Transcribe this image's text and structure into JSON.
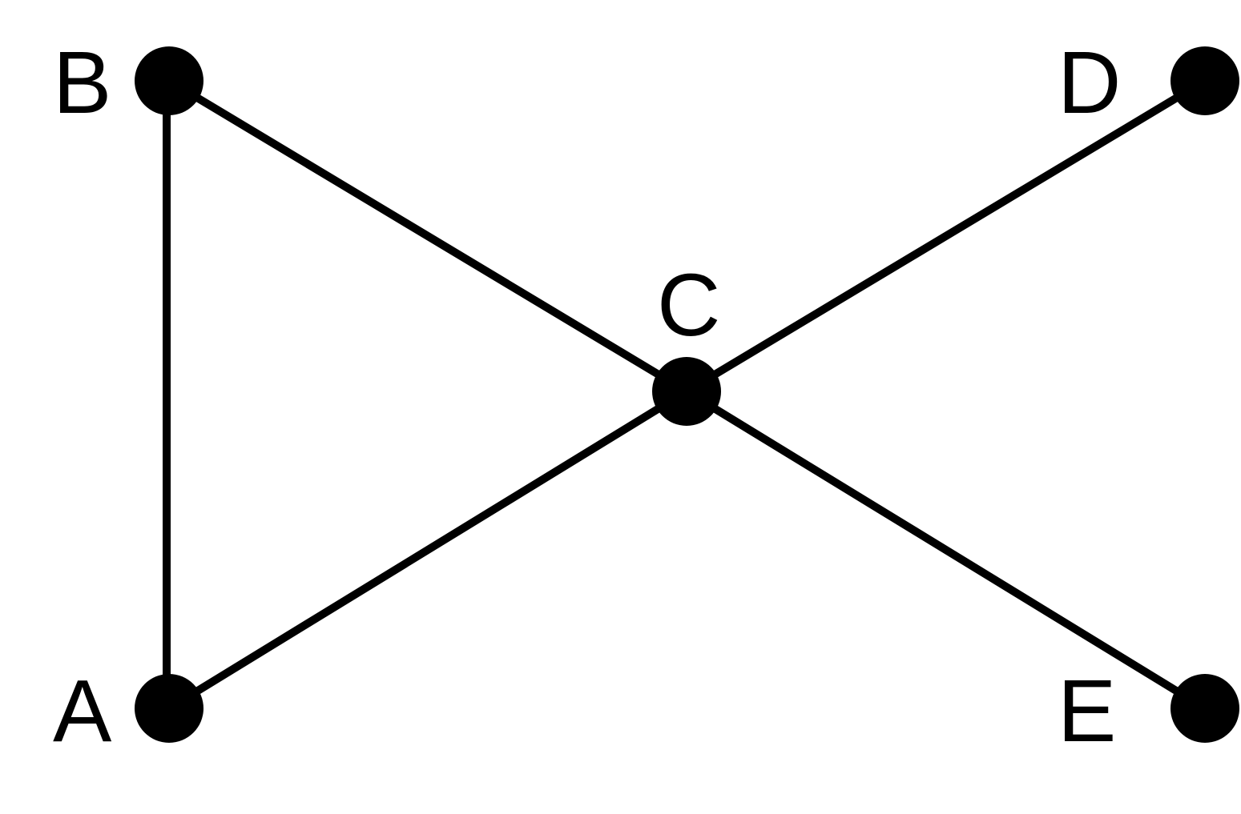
{
  "graph": {
    "nodes": [
      {
        "id": "A",
        "label": "A"
      },
      {
        "id": "B",
        "label": "B"
      },
      {
        "id": "C",
        "label": "C"
      },
      {
        "id": "D",
        "label": "D"
      },
      {
        "id": "E",
        "label": "E"
      }
    ],
    "edges": [
      {
        "from": "A",
        "to": "B"
      },
      {
        "from": "B",
        "to": "C"
      },
      {
        "from": "A",
        "to": "C"
      },
      {
        "from": "C",
        "to": "D"
      },
      {
        "from": "C",
        "to": "E"
      }
    ],
    "colors": {
      "node": "#000000",
      "edge": "#000000",
      "background": "#ffffff"
    }
  }
}
